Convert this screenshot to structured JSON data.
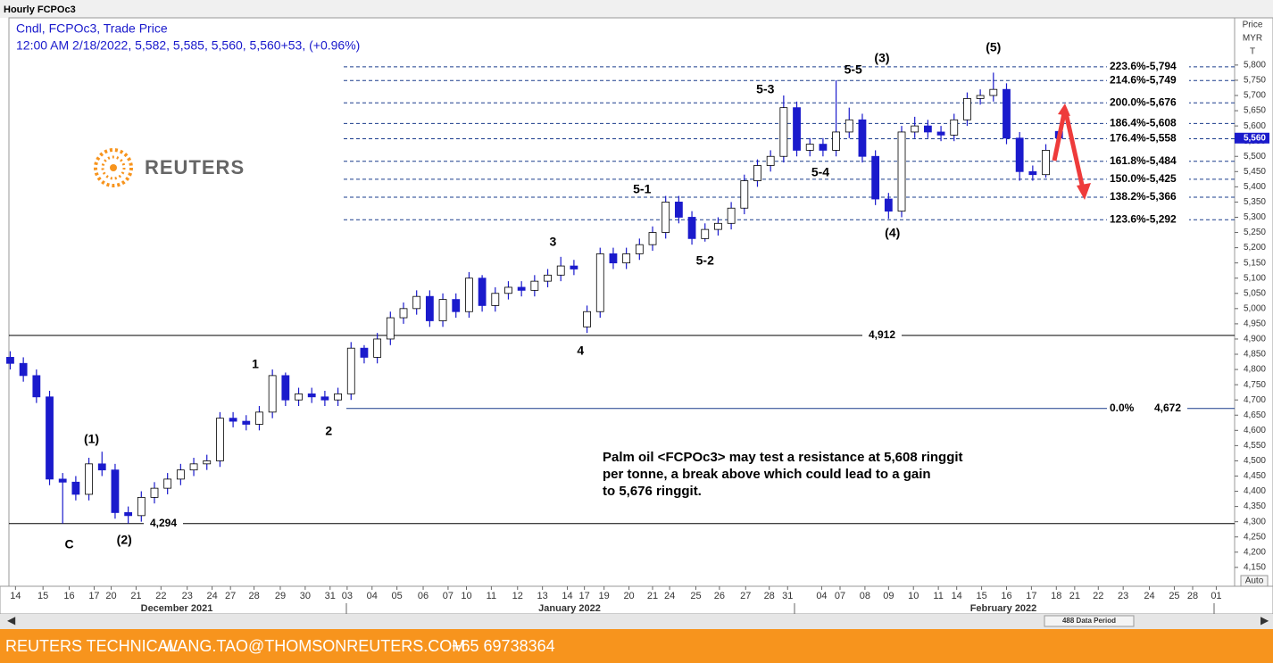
{
  "chart_data": {
    "type": "candlestick",
    "title": "Hourly FCPOc3",
    "legend_lines": [
      "Cndl, FCPOc3, Trade Price",
      "12:00 AM 2/18/2022, 5,582, 5,585, 5,560, 5,560+53, (+0.96%)"
    ],
    "price_axis_title": [
      "Price",
      "MYR",
      "T"
    ],
    "color_up": "#ffffff",
    "color_down": "#1a1acc",
    "wick_color": "#1a1acc",
    "open": [
      4840,
      4820,
      4780,
      4710,
      4440,
      4430,
      4390,
      4490,
      4470,
      4330,
      4320,
      4380,
      4410,
      4440,
      4470,
      4490,
      4500,
      4640,
      4630,
      4620,
      4660,
      4780,
      4700,
      4720,
      4710,
      4700,
      4720,
      4870,
      4840,
      4900,
      4970,
      5000,
      5040,
      4960,
      5030,
      4990,
      5100,
      5010,
      5050,
      5070,
      5060,
      5090,
      5110,
      5140,
      4940,
      4990,
      5180,
      5150,
      5180,
      5210,
      5250,
      5350,
      5300,
      5230,
      5260,
      5280,
      5330,
      5420,
      5470,
      5500,
      5660,
      5520,
      5540,
      5520,
      5580,
      5620,
      5500,
      5360,
      5320,
      5580,
      5600,
      5580,
      5570,
      5620,
      5690,
      5700,
      5720,
      5560,
      5450,
      5440,
      5582
    ],
    "high": [
      4860,
      4840,
      4800,
      4730,
      4460,
      4450,
      4510,
      4530,
      4490,
      4350,
      4400,
      4430,
      4460,
      4490,
      4510,
      4520,
      4660,
      4660,
      4650,
      4680,
      4800,
      4790,
      4740,
      4740,
      4730,
      4740,
      4890,
      4880,
      4920,
      4990,
      5020,
      5060,
      5060,
      5050,
      5050,
      5120,
      5110,
      5070,
      5090,
      5090,
      5110,
      5130,
      5170,
      5160,
      5010,
      5200,
      5200,
      5200,
      5230,
      5270,
      5370,
      5370,
      5320,
      5280,
      5300,
      5350,
      5440,
      5490,
      5520,
      5700,
      5680,
      5560,
      5560,
      5750,
      5660,
      5640,
      5520,
      5380,
      5600,
      5630,
      5620,
      5600,
      5640,
      5710,
      5720,
      5775,
      5740,
      5580,
      5470,
      5540,
      5585
    ],
    "low": [
      4800,
      4760,
      4690,
      4420,
      4294,
      4370,
      4370,
      4450,
      4310,
      4294,
      4300,
      4360,
      4390,
      4420,
      4450,
      4470,
      4480,
      4610,
      4600,
      4600,
      4640,
      4680,
      4680,
      4690,
      4680,
      4680,
      4700,
      4820,
      4820,
      4880,
      4950,
      4980,
      4940,
      4940,
      4970,
      4970,
      4990,
      4990,
      5030,
      5040,
      5040,
      5070,
      5090,
      5110,
      4920,
      4970,
      5130,
      5130,
      5160,
      5190,
      5230,
      5280,
      5210,
      5220,
      5240,
      5260,
      5310,
      5400,
      5450,
      5480,
      5500,
      5500,
      5500,
      5500,
      5560,
      5480,
      5340,
      5295,
      5300,
      5560,
      5560,
      5550,
      5550,
      5600,
      5670,
      5680,
      5540,
      5420,
      5420,
      5430,
      5560
    ],
    "close": [
      4820,
      4780,
      4710,
      4440,
      4430,
      4390,
      4490,
      4470,
      4330,
      4320,
      4380,
      4410,
      4440,
      4470,
      4490,
      4500,
      4640,
      4630,
      4620,
      4660,
      4780,
      4700,
      4720,
      4710,
      4700,
      4720,
      4870,
      4840,
      4900,
      4970,
      5000,
      5040,
      4960,
      5030,
      4990,
      5100,
      5010,
      5050,
      5070,
      5060,
      5090,
      5110,
      5140,
      5130,
      4990,
      5180,
      5150,
      5180,
      5210,
      5250,
      5350,
      5300,
      5230,
      5260,
      5280,
      5330,
      5420,
      5470,
      5500,
      5660,
      5520,
      5540,
      5520,
      5580,
      5620,
      5500,
      5360,
      5320,
      5580,
      5600,
      5580,
      5570,
      5620,
      5690,
      5700,
      5720,
      5560,
      5450,
      5440,
      5520,
      5560
    ],
    "xlim": [
      -0.1,
      93.4
    ],
    "xticks": [
      {
        "value": 0.4,
        "label": "14"
      },
      {
        "value": 2.5,
        "label": "15"
      },
      {
        "value": 4.5,
        "label": "16"
      },
      {
        "value": 6.4,
        "label": "17"
      },
      {
        "value": 7.7,
        "label": "20"
      },
      {
        "value": 9.6,
        "label": "21"
      },
      {
        "value": 11.5,
        "label": "22"
      },
      {
        "value": 13.5,
        "label": "23"
      },
      {
        "value": 15.4,
        "label": "24"
      },
      {
        "value": 16.8,
        "label": "27"
      },
      {
        "value": 18.6,
        "label": "28"
      },
      {
        "value": 20.6,
        "label": "29"
      },
      {
        "value": 22.5,
        "label": "30"
      },
      {
        "value": 24.4,
        "label": "31"
      },
      {
        "value": 25.7,
        "label": "03"
      },
      {
        "value": 27.6,
        "label": "04"
      },
      {
        "value": 29.5,
        "label": "05"
      },
      {
        "value": 31.5,
        "label": "06"
      },
      {
        "value": 33.4,
        "label": "07"
      },
      {
        "value": 34.8,
        "label": "10"
      },
      {
        "value": 36.7,
        "label": "11"
      },
      {
        "value": 38.7,
        "label": "12"
      },
      {
        "value": 40.6,
        "label": "13"
      },
      {
        "value": 42.5,
        "label": "14"
      },
      {
        "value": 43.8,
        "label": "17"
      },
      {
        "value": 45.3,
        "label": "19"
      },
      {
        "value": 47.2,
        "label": "20"
      },
      {
        "value": 49.0,
        "label": "21"
      },
      {
        "value": 50.3,
        "label": "24"
      },
      {
        "value": 52.3,
        "label": "25"
      },
      {
        "value": 54.1,
        "label": "26"
      },
      {
        "value": 56.1,
        "label": "27"
      },
      {
        "value": 57.9,
        "label": "28"
      },
      {
        "value": 59.3,
        "label": "31"
      },
      {
        "value": 61.9,
        "label": "04"
      },
      {
        "value": 63.3,
        "label": "07"
      },
      {
        "value": 65.2,
        "label": "08"
      },
      {
        "value": 67.0,
        "label": "09"
      },
      {
        "value": 68.9,
        "label": "10"
      },
      {
        "value": 70.8,
        "label": "11"
      },
      {
        "value": 72.2,
        "label": "14"
      },
      {
        "value": 74.1,
        "label": "15"
      },
      {
        "value": 76.0,
        "label": "16"
      },
      {
        "value": 77.9,
        "label": "17"
      },
      {
        "value": 79.8,
        "label": "18"
      },
      {
        "value": 81.2,
        "label": "21"
      },
      {
        "value": 83.0,
        "label": "22"
      },
      {
        "value": 84.9,
        "label": "23"
      },
      {
        "value": 86.9,
        "label": "24"
      },
      {
        "value": 88.8,
        "label": "25"
      },
      {
        "value": 90.2,
        "label": "28"
      },
      {
        "value": 92.0,
        "label": "01"
      }
    ],
    "months": [
      "December 2021",
      "January 2022",
      "February 2022"
    ],
    "ylim": [
      4088,
      5955
    ],
    "yticks": [
      {
        "value": 4150,
        "label": "4,150"
      },
      {
        "value": 4200,
        "label": "4,200"
      },
      {
        "value": 4250,
        "label": "4,250"
      },
      {
        "value": 4300,
        "label": "4,300"
      },
      {
        "value": 4350,
        "label": "4,350"
      },
      {
        "value": 4400,
        "label": "4,400"
      },
      {
        "value": 4450,
        "label": "4,450"
      },
      {
        "value": 4500,
        "label": "4,500"
      },
      {
        "value": 4550,
        "label": "4,550"
      },
      {
        "value": 4600,
        "label": "4,600"
      },
      {
        "value": 4650,
        "label": "4,650"
      },
      {
        "value": 4700,
        "label": "4,700"
      },
      {
        "value": 4750,
        "label": "4,750"
      },
      {
        "value": 4800,
        "label": "4,800"
      },
      {
        "value": 4850,
        "label": "4,850"
      },
      {
        "value": 4900,
        "label": "4,900"
      },
      {
        "value": 4950,
        "label": "4,950"
      },
      {
        "value": 5000,
        "label": "5,000"
      },
      {
        "value": 5050,
        "label": "5,050"
      },
      {
        "value": 5100,
        "label": "5,100"
      },
      {
        "value": 5150,
        "label": "5,150"
      },
      {
        "value": 5200,
        "label": "5,200"
      },
      {
        "value": 5250,
        "label": "5,250"
      },
      {
        "value": 5300,
        "label": "5,300"
      },
      {
        "value": 5350,
        "label": "5,350"
      },
      {
        "value": 5400,
        "label": "5,400"
      },
      {
        "value": 5450,
        "label": "5,450"
      },
      {
        "value": 5500,
        "label": "5,500"
      },
      {
        "value": 5550,
        "label": "5,550"
      },
      {
        "value": 5600,
        "label": "5,600"
      },
      {
        "value": 5650,
        "label": "5,650"
      },
      {
        "value": 5700,
        "label": "5,700"
      },
      {
        "value": 5750,
        "label": "5,750"
      },
      {
        "value": 5800,
        "label": "5,800"
      }
    ],
    "last_price": {
      "value": 5560,
      "label": "5,560"
    },
    "fib_levels": [
      {
        "value": 5794,
        "label": "223.6%-5,794"
      },
      {
        "value": 5749,
        "label": "214.6%-5,749"
      },
      {
        "value": 5676,
        "label": "200.0%-5,676"
      },
      {
        "value": 5608,
        "label": "186.4%-5,608"
      },
      {
        "value": 5558,
        "label": "176.4%-5,558"
      },
      {
        "value": 5484,
        "label": "161.8%-5,484"
      },
      {
        "value": 5425,
        "label": "150.0%-5,425"
      },
      {
        "value": 5366,
        "label": "138.2%-5,366"
      },
      {
        "value": 5292,
        "label": "123.6%-5,292"
      }
    ],
    "fib_zero": {
      "value": 4672,
      "ratio_label": "0.0%",
      "label": "4,672"
    },
    "support_lines": [
      {
        "value": 4912,
        "label": "4,912"
      },
      {
        "value": 4294,
        "label": "4,294"
      }
    ],
    "wave_labels": [
      {
        "text": "C",
        "x": 4.5,
        "y": 4223
      },
      {
        "text": "(1)",
        "x": 6.2,
        "y": 4569
      },
      {
        "text": "(2)",
        "x": 8.7,
        "y": 4238
      },
      {
        "text": "1",
        "x": 18.7,
        "y": 4815
      },
      {
        "text": "2",
        "x": 24.3,
        "y": 4595
      },
      {
        "text": "3",
        "x": 41.4,
        "y": 5217
      },
      {
        "text": "4",
        "x": 43.5,
        "y": 4859
      },
      {
        "text": "5-1",
        "x": 48.2,
        "y": 5390
      },
      {
        "text": "5-2",
        "x": 53.0,
        "y": 5155
      },
      {
        "text": "5-3",
        "x": 57.6,
        "y": 5718
      },
      {
        "text": "5-4",
        "x": 61.8,
        "y": 5445
      },
      {
        "text": "5-5",
        "x": 64.3,
        "y": 5782
      },
      {
        "text": "(3)",
        "x": 66.5,
        "y": 5821
      },
      {
        "text": "(4)",
        "x": 67.3,
        "y": 5246
      },
      {
        "text": "(5)",
        "x": 75.0,
        "y": 5856
      }
    ],
    "annotation": [
      "Palm oil <FCPOc3> may test a resistance at 5,608 ringgit",
      "per tonne, a break above which could lead to a gain",
      "to 5,676 ringgit."
    ],
    "auto_label": "Auto",
    "data_period": "488 Data Period"
  },
  "logo": "REUTERS",
  "footer": [
    "REUTERS TECHNICAL",
    "WANG.TAO@THOMSONREUTERS.COM",
    "+65 69738364"
  ]
}
